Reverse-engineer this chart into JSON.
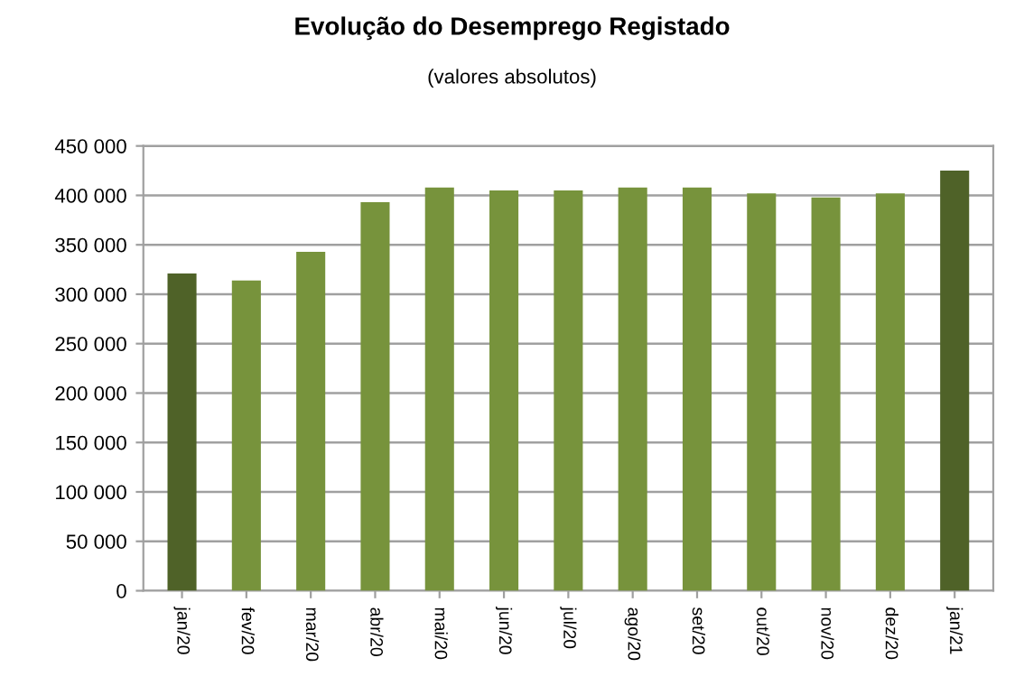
{
  "chart_data": {
    "type": "bar",
    "title": "Evolução do Desemprego Registado",
    "subtitle": "(valores absolutos)",
    "categories": [
      "jan/20",
      "fev/20",
      "mar/20",
      "abr/20",
      "mai/20",
      "jun/20",
      "jul/20",
      "ago/20",
      "set/20",
      "out/20",
      "nov/20",
      "dez/20",
      "jan/21"
    ],
    "values": [
      321000,
      314000,
      343000,
      393000,
      408000,
      405000,
      405000,
      408000,
      408000,
      402000,
      398000,
      402000,
      425000
    ],
    "colors": [
      "#4f6228",
      "#77933c",
      "#77933c",
      "#77933c",
      "#77933c",
      "#77933c",
      "#77933c",
      "#77933c",
      "#77933c",
      "#77933c",
      "#77933c",
      "#77933c",
      "#4f6228"
    ],
    "ylim": [
      0,
      450000
    ],
    "yticks": [
      {
        "value": 0,
        "label": "0"
      },
      {
        "value": 50000,
        "label": "50 000"
      },
      {
        "value": 100000,
        "label": "100 000"
      },
      {
        "value": 150000,
        "label": "150 000"
      },
      {
        "value": 200000,
        "label": "200 000"
      },
      {
        "value": 250000,
        "label": "250 000"
      },
      {
        "value": 300000,
        "label": "300 000"
      },
      {
        "value": 350000,
        "label": "350 000"
      },
      {
        "value": 400000,
        "label": "400 000"
      },
      {
        "value": 450000,
        "label": "450 000"
      }
    ],
    "grid": "y"
  }
}
